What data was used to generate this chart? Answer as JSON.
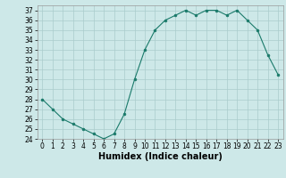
{
  "x": [
    0,
    1,
    2,
    3,
    4,
    5,
    6,
    7,
    8,
    9,
    10,
    11,
    12,
    13,
    14,
    15,
    16,
    17,
    18,
    19,
    20,
    21,
    22,
    23
  ],
  "y": [
    28,
    27,
    26,
    25.5,
    25,
    24.5,
    24,
    24.5,
    26.5,
    30,
    33,
    35,
    36,
    36.5,
    37,
    36.5,
    37,
    37,
    36.5,
    37,
    36,
    35,
    32.5,
    30.5
  ],
  "line_color": "#1a7a6a",
  "marker_color": "#1a7a6a",
  "bg_color": "#cde8e8",
  "grid_color": "#aacccc",
  "xlabel": "Humidex (Indice chaleur)",
  "ylim": [
    24,
    37.5
  ],
  "xlim": [
    -0.5,
    23.5
  ],
  "yticks": [
    24,
    25,
    26,
    27,
    28,
    29,
    30,
    31,
    32,
    33,
    34,
    35,
    36,
    37
  ],
  "xticks": [
    0,
    1,
    2,
    3,
    4,
    5,
    6,
    7,
    8,
    9,
    10,
    11,
    12,
    13,
    14,
    15,
    16,
    17,
    18,
    19,
    20,
    21,
    22,
    23
  ],
  "xtick_labels": [
    "0",
    "1",
    "2",
    "3",
    "4",
    "5",
    "6",
    "7",
    "8",
    "9",
    "10",
    "11",
    "12",
    "13",
    "14",
    "15",
    "16",
    "17",
    "18",
    "19",
    "20",
    "21",
    "22",
    "23"
  ],
  "axis_fontsize": 5.5,
  "label_fontsize": 7
}
